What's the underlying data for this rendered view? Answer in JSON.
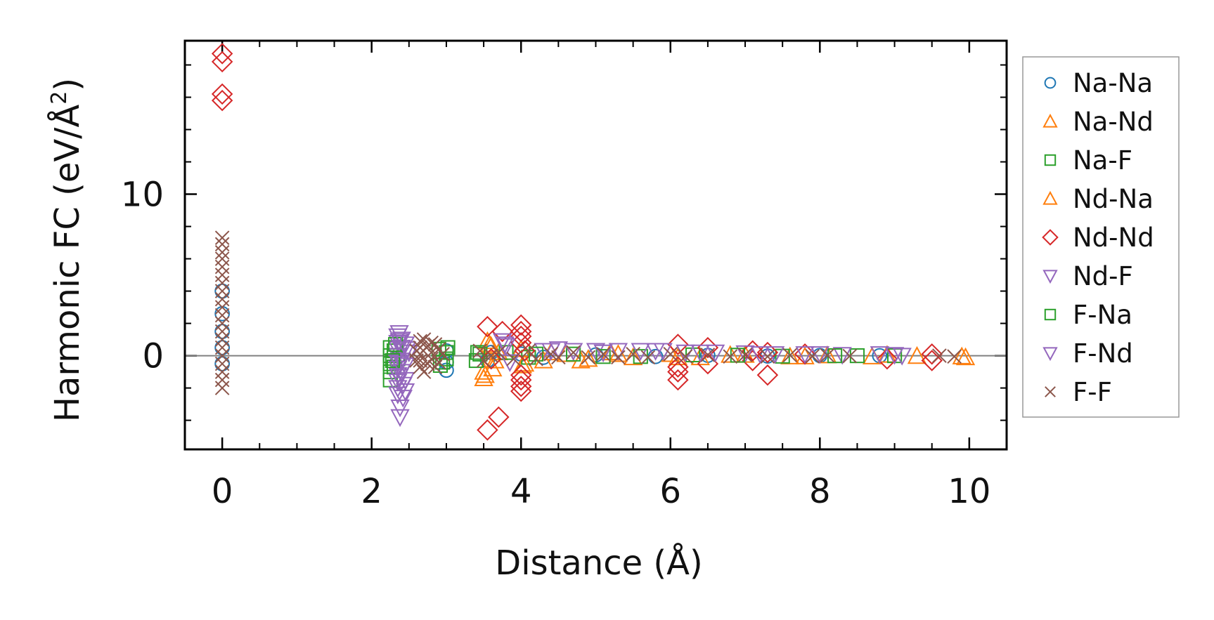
{
  "chart_data": {
    "type": "scatter",
    "title": "",
    "xlabel": "Distance (Å)",
    "ylabel_main": "Harmonic FC (eV/Å",
    "ylabel_sup": "2",
    "ylabel_close": ")",
    "xlim": [
      -0.5,
      10.5
    ],
    "ylim": [
      -5.8,
      19.5
    ],
    "xticks": [
      0,
      2,
      4,
      6,
      8,
      10
    ],
    "xtick_labels": [
      "0",
      "2",
      "4",
      "6",
      "8",
      "10"
    ],
    "yticks": [
      0,
      10
    ],
    "ytick_labels": [
      "0",
      "10"
    ],
    "zero_line": 0,
    "grid": false,
    "legend_position": "outside-right",
    "series": [
      {
        "name": "Na-Na",
        "color": "#1f77b4",
        "marker": "circle",
        "points": [
          [
            0,
            4.0
          ],
          [
            0,
            2.6
          ],
          [
            0,
            1.5
          ],
          [
            0,
            0.5
          ],
          [
            0,
            -0.5
          ],
          [
            3.0,
            -0.9
          ],
          [
            3.0,
            -0.4
          ],
          [
            3.0,
            0.3
          ],
          [
            3.55,
            -0.3
          ],
          [
            3.6,
            0.2
          ],
          [
            4.0,
            0.1
          ],
          [
            4.3,
            -0.1
          ],
          [
            5.0,
            0.05
          ],
          [
            5.8,
            -0.05
          ],
          [
            6.5,
            0.02
          ],
          [
            7.3,
            -0.02
          ],
          [
            8.0,
            0.01
          ],
          [
            8.8,
            0.0
          ]
        ]
      },
      {
        "name": "Na-Nd",
        "color": "#ff7f0e",
        "marker": "triangle-up",
        "points": [
          [
            3.5,
            -1.4
          ],
          [
            3.5,
            -1.0
          ],
          [
            3.55,
            0.9
          ],
          [
            3.6,
            0.6
          ],
          [
            3.65,
            -0.3
          ],
          [
            3.7,
            0.2
          ],
          [
            4.0,
            0.4
          ],
          [
            4.05,
            -0.5
          ],
          [
            4.3,
            -0.3
          ],
          [
            4.6,
            0.1
          ],
          [
            4.8,
            -0.3
          ],
          [
            5.2,
            0.2
          ],
          [
            5.5,
            -0.1
          ],
          [
            6.0,
            0.1
          ],
          [
            6.4,
            -0.1
          ],
          [
            7.0,
            0.05
          ],
          [
            7.6,
            -0.05
          ],
          [
            8.1,
            0.02
          ],
          [
            8.7,
            -0.05
          ],
          [
            8.9,
            0.05
          ],
          [
            9.3,
            -0.02
          ],
          [
            9.95,
            -0.1
          ]
        ]
      },
      {
        "name": "Na-F",
        "color": "#2ca02c",
        "marker": "square",
        "points": [
          [
            2.25,
            -1.5
          ],
          [
            2.25,
            -1.0
          ],
          [
            2.25,
            -0.5
          ],
          [
            2.25,
            0.0
          ],
          [
            2.25,
            0.5
          ],
          [
            2.3,
            -0.7
          ],
          [
            2.3,
            0.3
          ],
          [
            2.35,
            -0.2
          ],
          [
            2.9,
            0.4
          ],
          [
            2.95,
            -0.4
          ],
          [
            3.0,
            0.2
          ],
          [
            3.0,
            -0.2
          ],
          [
            3.4,
            -0.3
          ],
          [
            3.45,
            0.1
          ],
          [
            3.8,
            0.2
          ],
          [
            4.1,
            -0.1
          ],
          [
            4.7,
            0.1
          ],
          [
            5.6,
            -0.05
          ],
          [
            6.3,
            0.05
          ],
          [
            7.5,
            -0.03
          ],
          [
            8.5,
            0.0
          ],
          [
            9.0,
            0.0
          ]
        ]
      },
      {
        "name": "Nd-Na",
        "color": "#ff7f0e",
        "marker": "triangle-up",
        "points": [
          [
            3.52,
            -1.2
          ],
          [
            3.58,
            0.7
          ],
          [
            3.62,
            -0.8
          ],
          [
            4.02,
            -0.6
          ],
          [
            4.4,
            0.2
          ],
          [
            4.9,
            -0.2
          ],
          [
            5.3,
            0.1
          ],
          [
            6.1,
            -0.1
          ],
          [
            6.8,
            0.05
          ],
          [
            7.8,
            -0.05
          ],
          [
            9.9,
            -0.05
          ]
        ]
      },
      {
        "name": "Nd-Nd",
        "color": "#d62728",
        "marker": "diamond",
        "points": [
          [
            0,
            18.7
          ],
          [
            0,
            18.2
          ],
          [
            0,
            16.2
          ],
          [
            0,
            15.8
          ],
          [
            3.55,
            -4.6
          ],
          [
            3.55,
            1.8
          ],
          [
            3.6,
            -0.2
          ],
          [
            3.7,
            -3.8
          ],
          [
            3.75,
            1.5
          ],
          [
            4.0,
            1.9
          ],
          [
            4.0,
            1.5
          ],
          [
            4.0,
            1.2
          ],
          [
            4.0,
            0.8
          ],
          [
            4.0,
            -1.2
          ],
          [
            4.0,
            -1.5
          ],
          [
            4.0,
            -1.9
          ],
          [
            4.0,
            -2.2
          ],
          [
            4.05,
            0.3
          ],
          [
            6.1,
            0.7
          ],
          [
            6.1,
            -0.7
          ],
          [
            6.1,
            -1.0
          ],
          [
            6.1,
            -1.5
          ],
          [
            6.5,
            0.5
          ],
          [
            6.5,
            -0.5
          ],
          [
            7.1,
            0.3
          ],
          [
            7.1,
            -0.3
          ],
          [
            7.3,
            -1.2
          ],
          [
            7.3,
            0.2
          ],
          [
            7.8,
            0.1
          ],
          [
            8.9,
            -0.2
          ],
          [
            9.5,
            0.1
          ],
          [
            9.5,
            -0.3
          ]
        ]
      },
      {
        "name": "Nd-F",
        "color": "#9467bd",
        "marker": "triangle-down",
        "points": [
          [
            2.35,
            1.2
          ],
          [
            2.35,
            0.8
          ],
          [
            2.35,
            0.4
          ],
          [
            2.35,
            0.0
          ],
          [
            2.35,
            -0.4
          ],
          [
            2.35,
            -0.8
          ],
          [
            2.35,
            -1.2
          ],
          [
            2.35,
            -1.6
          ],
          [
            2.35,
            -2.0
          ],
          [
            2.35,
            -2.4
          ],
          [
            2.38,
            -3.2
          ],
          [
            2.38,
            -3.8
          ],
          [
            2.4,
            1.0
          ],
          [
            2.4,
            0.5
          ],
          [
            2.4,
            -0.3
          ],
          [
            2.4,
            -1.0
          ],
          [
            2.45,
            0.7
          ],
          [
            2.45,
            -0.6
          ],
          [
            2.45,
            -1.5
          ],
          [
            2.45,
            -2.2
          ],
          [
            2.5,
            0.2
          ],
          [
            3.75,
            0.9
          ],
          [
            3.8,
            0.6
          ],
          [
            3.85,
            -0.4
          ],
          [
            4.3,
            0.3
          ],
          [
            4.5,
            0.4
          ],
          [
            4.7,
            0.3
          ],
          [
            5.0,
            0.3
          ],
          [
            5.3,
            0.3
          ],
          [
            5.6,
            0.3
          ],
          [
            5.9,
            0.3
          ],
          [
            6.2,
            0.2
          ],
          [
            6.6,
            0.2
          ],
          [
            7.0,
            0.15
          ],
          [
            7.4,
            0.1
          ],
          [
            7.8,
            0.1
          ],
          [
            8.3,
            0.05
          ],
          [
            8.8,
            0.1
          ],
          [
            9.1,
            0.0
          ]
        ]
      },
      {
        "name": "F-Na",
        "color": "#2ca02c",
        "marker": "square",
        "points": [
          [
            2.28,
            -0.3
          ],
          [
            2.32,
            0.7
          ],
          [
            2.92,
            -0.6
          ],
          [
            3.02,
            0.5
          ],
          [
            3.42,
            0.2
          ],
          [
            4.2,
            0.1
          ],
          [
            5.1,
            -0.05
          ],
          [
            6.9,
            0.03
          ],
          [
            8.2,
            0.0
          ]
        ]
      },
      {
        "name": "F-Nd",
        "color": "#9467bd",
        "marker": "triangle-down",
        "points": [
          [
            2.37,
            1.4
          ],
          [
            2.37,
            0.9
          ],
          [
            2.37,
            -0.5
          ],
          [
            2.37,
            -1.3
          ],
          [
            2.42,
            -1.8
          ],
          [
            2.42,
            -2.6
          ],
          [
            2.47,
            0.4
          ],
          [
            3.78,
            0.7
          ],
          [
            4.4,
            0.3
          ],
          [
            5.1,
            0.2
          ],
          [
            5.8,
            0.3
          ],
          [
            6.4,
            0.2
          ],
          [
            7.2,
            0.1
          ],
          [
            8.0,
            0.1
          ],
          [
            9.0,
            0.05
          ]
        ]
      },
      {
        "name": "F-F",
        "color": "#8c564b",
        "marker": "x",
        "points": [
          [
            0,
            7.3
          ],
          [
            0,
            6.9
          ],
          [
            0,
            6.4
          ],
          [
            0,
            6.0
          ],
          [
            0,
            5.5
          ],
          [
            0,
            5.0
          ],
          [
            0,
            4.5
          ],
          [
            0,
            4.0
          ],
          [
            0,
            3.5
          ],
          [
            0,
            3.0
          ],
          [
            0,
            2.5
          ],
          [
            0,
            2.0
          ],
          [
            0,
            1.5
          ],
          [
            0,
            1.0
          ],
          [
            0,
            0.5
          ],
          [
            0,
            0.0
          ],
          [
            0,
            -0.5
          ],
          [
            0,
            -1.0
          ],
          [
            0,
            -1.5
          ],
          [
            0,
            -2.0
          ],
          [
            2.65,
            0.9
          ],
          [
            2.65,
            0.5
          ],
          [
            2.65,
            0.1
          ],
          [
            2.65,
            -0.3
          ],
          [
            2.65,
            -0.7
          ],
          [
            2.7,
            1.0
          ],
          [
            2.7,
            -1.0
          ],
          [
            2.75,
            0.6
          ],
          [
            2.75,
            -0.5
          ],
          [
            2.8,
            0.8
          ],
          [
            2.8,
            0.2
          ],
          [
            2.8,
            -0.2
          ],
          [
            2.85,
            0.7
          ],
          [
            2.85,
            -0.7
          ],
          [
            2.9,
            0.4
          ],
          [
            2.9,
            -0.4
          ],
          [
            2.95,
            0.1
          ],
          [
            2.6,
            0.3
          ],
          [
            2.6,
            -0.3
          ],
          [
            3.45,
            0.3
          ],
          [
            3.5,
            -0.3
          ],
          [
            3.6,
            0.0
          ],
          [
            3.7,
            0.2
          ],
          [
            3.9,
            -0.2
          ],
          [
            4.1,
            0.3
          ],
          [
            4.2,
            -0.2
          ],
          [
            4.4,
            0.1
          ],
          [
            4.5,
            -0.1
          ],
          [
            4.7,
            0.2
          ],
          [
            4.9,
            -0.1
          ],
          [
            5.1,
            0.1
          ],
          [
            5.3,
            -0.1
          ],
          [
            5.5,
            0.1
          ],
          [
            5.7,
            -0.1
          ],
          [
            6.0,
            0.1
          ],
          [
            6.2,
            -0.05
          ],
          [
            6.5,
            0.05
          ],
          [
            6.8,
            -0.05
          ],
          [
            7.0,
            0.05
          ],
          [
            7.3,
            -0.05
          ],
          [
            7.6,
            0.03
          ],
          [
            7.9,
            -0.03
          ],
          [
            8.1,
            0.02
          ],
          [
            8.4,
            -0.02
          ],
          [
            9.6,
            0.0
          ],
          [
            9.8,
            -0.05
          ]
        ]
      }
    ]
  }
}
